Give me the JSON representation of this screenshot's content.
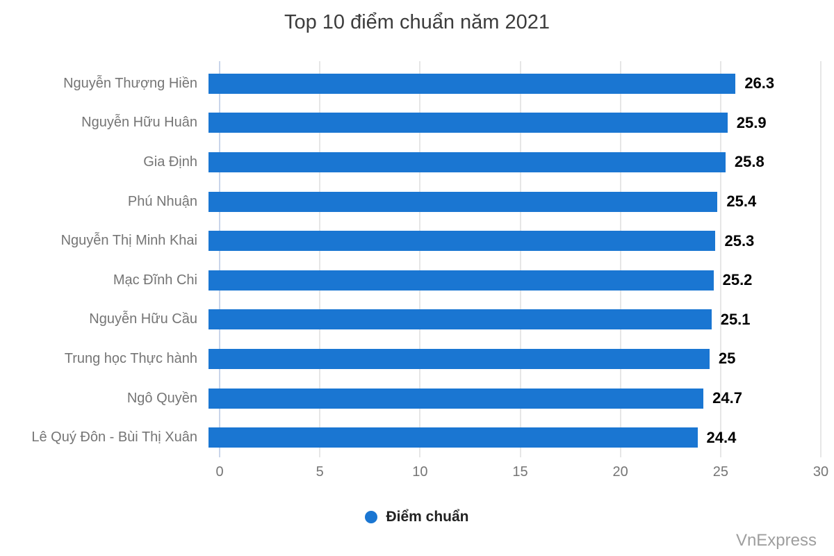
{
  "title": "Top 10 điểm chuẩn năm 2021",
  "legend": {
    "label": "Điểm chuẩn"
  },
  "watermark": "VnExpress",
  "colors": {
    "bar": "#1a76d2",
    "gridline": "#e6e6e6",
    "axis_line": "#c9d5ea",
    "title_text": "#3c3c3c",
    "category_text": "#757575",
    "tick_text": "#757575",
    "value_text": "#000000",
    "legend_text": "#222222",
    "watermark_text": "#9e9e9e"
  },
  "chart_data": {
    "type": "bar",
    "orientation": "horizontal",
    "title": "Top 10 điểm chuẩn năm 2021",
    "categories": [
      "Nguyễn Thượng Hiền",
      "Nguyễn Hữu Huân",
      "Gia Định",
      "Phú Nhuận",
      "Nguyễn Thị Minh Khai",
      "Mạc Đĩnh Chi",
      "Nguyễn Hữu Cầu",
      "Trung học Thực hành",
      "Ngô Quyền",
      "Lê Quý Đôn - Bùi Thị Xuân"
    ],
    "values": [
      26.3,
      25.9,
      25.8,
      25.4,
      25.3,
      25.2,
      25.1,
      25,
      24.7,
      24.4
    ],
    "value_labels": [
      "26.3",
      "25.9",
      "25.8",
      "25.4",
      "25.3",
      "25.2",
      "25.1",
      "25",
      "24.7",
      "24.4"
    ],
    "xlim": [
      0,
      30
    ],
    "xticks": [
      0,
      5,
      10,
      15,
      20,
      25,
      30
    ],
    "xlabel": "",
    "ylabel": "",
    "series_name": "Điểm chuẩn",
    "legend_position": "bottom",
    "grid": true
  }
}
